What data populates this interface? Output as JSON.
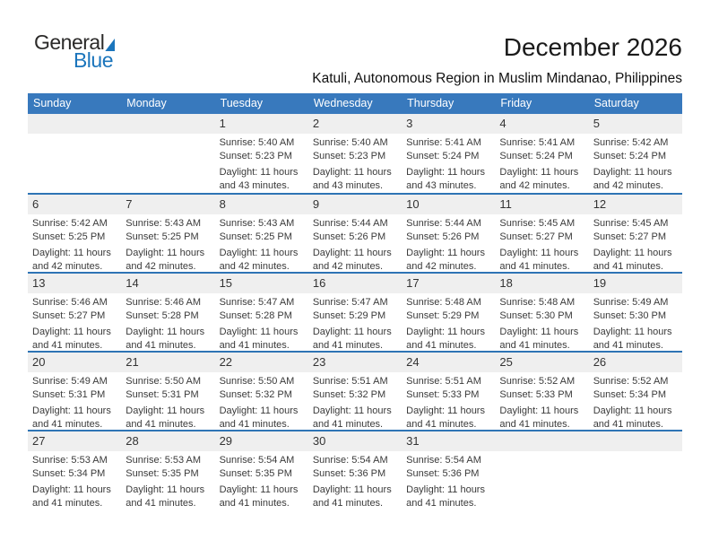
{
  "logo": {
    "word_dark": "General",
    "word_blue": "Blue"
  },
  "page": {
    "title": "December 2026",
    "subtitle": "Katuli, Autonomous Region in Muslim Mindanao, Philippines"
  },
  "colors": {
    "header_blue": "#3879BD",
    "separator_blue": "#2E74B5",
    "strip_gray": "#EFEFEF",
    "logo_blue": "#1B75BC",
    "logo_dark": "#2B2A29",
    "title_color": "#1A1A1A",
    "cell_text": "#3A3A3A"
  },
  "calendar": {
    "weekdays": [
      "Sunday",
      "Monday",
      "Tuesday",
      "Wednesday",
      "Thursday",
      "Friday",
      "Saturday"
    ],
    "weeks": [
      [
        null,
        null,
        {
          "day": "1",
          "lines": [
            "Sunrise: 5:40 AM",
            "Sunset: 5:23 PM",
            "Daylight: 11 hours",
            "and 43 minutes."
          ]
        },
        {
          "day": "2",
          "lines": [
            "Sunrise: 5:40 AM",
            "Sunset: 5:23 PM",
            "Daylight: 11 hours",
            "and 43 minutes."
          ]
        },
        {
          "day": "3",
          "lines": [
            "Sunrise: 5:41 AM",
            "Sunset: 5:24 PM",
            "Daylight: 11 hours",
            "and 43 minutes."
          ]
        },
        {
          "day": "4",
          "lines": [
            "Sunrise: 5:41 AM",
            "Sunset: 5:24 PM",
            "Daylight: 11 hours",
            "and 42 minutes."
          ]
        },
        {
          "day": "5",
          "lines": [
            "Sunrise: 5:42 AM",
            "Sunset: 5:24 PM",
            "Daylight: 11 hours",
            "and 42 minutes."
          ]
        }
      ],
      [
        {
          "day": "6",
          "lines": [
            "Sunrise: 5:42 AM",
            "Sunset: 5:25 PM",
            "Daylight: 11 hours",
            "and 42 minutes."
          ]
        },
        {
          "day": "7",
          "lines": [
            "Sunrise: 5:43 AM",
            "Sunset: 5:25 PM",
            "Daylight: 11 hours",
            "and 42 minutes."
          ]
        },
        {
          "day": "8",
          "lines": [
            "Sunrise: 5:43 AM",
            "Sunset: 5:25 PM",
            "Daylight: 11 hours",
            "and 42 minutes."
          ]
        },
        {
          "day": "9",
          "lines": [
            "Sunrise: 5:44 AM",
            "Sunset: 5:26 PM",
            "Daylight: 11 hours",
            "and 42 minutes."
          ]
        },
        {
          "day": "10",
          "lines": [
            "Sunrise: 5:44 AM",
            "Sunset: 5:26 PM",
            "Daylight: 11 hours",
            "and 42 minutes."
          ]
        },
        {
          "day": "11",
          "lines": [
            "Sunrise: 5:45 AM",
            "Sunset: 5:27 PM",
            "Daylight: 11 hours",
            "and 41 minutes."
          ]
        },
        {
          "day": "12",
          "lines": [
            "Sunrise: 5:45 AM",
            "Sunset: 5:27 PM",
            "Daylight: 11 hours",
            "and 41 minutes."
          ]
        }
      ],
      [
        {
          "day": "13",
          "lines": [
            "Sunrise: 5:46 AM",
            "Sunset: 5:27 PM",
            "Daylight: 11 hours",
            "and 41 minutes."
          ]
        },
        {
          "day": "14",
          "lines": [
            "Sunrise: 5:46 AM",
            "Sunset: 5:28 PM",
            "Daylight: 11 hours",
            "and 41 minutes."
          ]
        },
        {
          "day": "15",
          "lines": [
            "Sunrise: 5:47 AM",
            "Sunset: 5:28 PM",
            "Daylight: 11 hours",
            "and 41 minutes."
          ]
        },
        {
          "day": "16",
          "lines": [
            "Sunrise: 5:47 AM",
            "Sunset: 5:29 PM",
            "Daylight: 11 hours",
            "and 41 minutes."
          ]
        },
        {
          "day": "17",
          "lines": [
            "Sunrise: 5:48 AM",
            "Sunset: 5:29 PM",
            "Daylight: 11 hours",
            "and 41 minutes."
          ]
        },
        {
          "day": "18",
          "lines": [
            "Sunrise: 5:48 AM",
            "Sunset: 5:30 PM",
            "Daylight: 11 hours",
            "and 41 minutes."
          ]
        },
        {
          "day": "19",
          "lines": [
            "Sunrise: 5:49 AM",
            "Sunset: 5:30 PM",
            "Daylight: 11 hours",
            "and 41 minutes."
          ]
        }
      ],
      [
        {
          "day": "20",
          "lines": [
            "Sunrise: 5:49 AM",
            "Sunset: 5:31 PM",
            "Daylight: 11 hours",
            "and 41 minutes."
          ]
        },
        {
          "day": "21",
          "lines": [
            "Sunrise: 5:50 AM",
            "Sunset: 5:31 PM",
            "Daylight: 11 hours",
            "and 41 minutes."
          ]
        },
        {
          "day": "22",
          "lines": [
            "Sunrise: 5:50 AM",
            "Sunset: 5:32 PM",
            "Daylight: 11 hours",
            "and 41 minutes."
          ]
        },
        {
          "day": "23",
          "lines": [
            "Sunrise: 5:51 AM",
            "Sunset: 5:32 PM",
            "Daylight: 11 hours",
            "and 41 minutes."
          ]
        },
        {
          "day": "24",
          "lines": [
            "Sunrise: 5:51 AM",
            "Sunset: 5:33 PM",
            "Daylight: 11 hours",
            "and 41 minutes."
          ]
        },
        {
          "day": "25",
          "lines": [
            "Sunrise: 5:52 AM",
            "Sunset: 5:33 PM",
            "Daylight: 11 hours",
            "and 41 minutes."
          ]
        },
        {
          "day": "26",
          "lines": [
            "Sunrise: 5:52 AM",
            "Sunset: 5:34 PM",
            "Daylight: 11 hours",
            "and 41 minutes."
          ]
        }
      ],
      [
        {
          "day": "27",
          "lines": [
            "Sunrise: 5:53 AM",
            "Sunset: 5:34 PM",
            "Daylight: 11 hours",
            "and 41 minutes."
          ]
        },
        {
          "day": "28",
          "lines": [
            "Sunrise: 5:53 AM",
            "Sunset: 5:35 PM",
            "Daylight: 11 hours",
            "and 41 minutes."
          ]
        },
        {
          "day": "29",
          "lines": [
            "Sunrise: 5:54 AM",
            "Sunset: 5:35 PM",
            "Daylight: 11 hours",
            "and 41 minutes."
          ]
        },
        {
          "day": "30",
          "lines": [
            "Sunrise: 5:54 AM",
            "Sunset: 5:36 PM",
            "Daylight: 11 hours",
            "and 41 minutes."
          ]
        },
        {
          "day": "31",
          "lines": [
            "Sunrise: 5:54 AM",
            "Sunset: 5:36 PM",
            "Daylight: 11 hours",
            "and 41 minutes."
          ]
        },
        null,
        null
      ]
    ]
  }
}
